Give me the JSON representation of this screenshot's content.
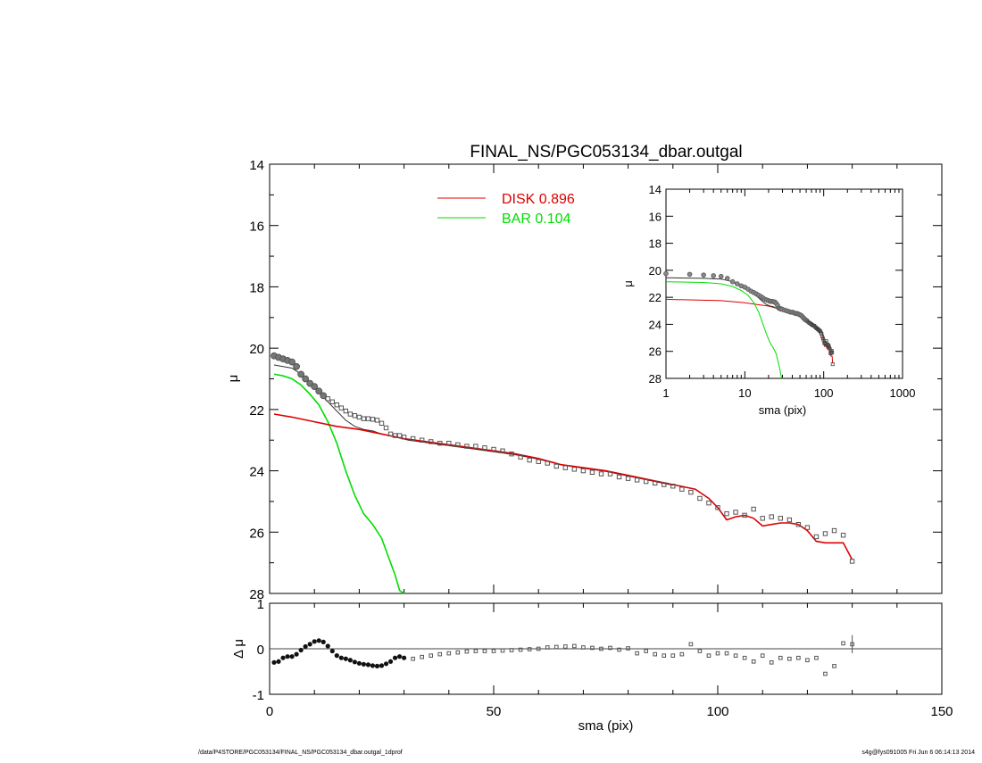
{
  "title": "FINAL_NS/PGC053134_dbar.outgal",
  "footer": {
    "path": "/data/P4STORE/PGC053134/FINAL_NS/PGC053134_dbar.outgal_1dprof",
    "stamp": "s4g@fys091005  Fri Jun  6 06:14:13 2014"
  },
  "colors": {
    "disk": "#dd0000",
    "bar": "#00dd00",
    "data": "#555555",
    "total": "#333333"
  },
  "chart_data": [
    {
      "id": "main",
      "type": "scatter",
      "title": "FINAL_NS/PGC053134_dbar.outgal",
      "xlabel": "",
      "ylabel": "μ",
      "xlim": [
        0,
        150
      ],
      "ylim": [
        28,
        14
      ],
      "xticks": [],
      "yticks": [
        14,
        16,
        18,
        20,
        22,
        24,
        26,
        28
      ],
      "legend": [
        {
          "name": "DISK",
          "value": "0.896",
          "color": "#dd0000"
        },
        {
          "name": "BAR",
          "value": "0.104",
          "color": "#00dd00"
        }
      ],
      "legend_position": "top-center",
      "observed_points": {
        "x": [
          1,
          2,
          3,
          4,
          5,
          6,
          7,
          8,
          9,
          10,
          11,
          12,
          13,
          14,
          15,
          16,
          17,
          18,
          19,
          20,
          21,
          22,
          23,
          24,
          25,
          26,
          27,
          28,
          29,
          30,
          32,
          34,
          36,
          38,
          40,
          42,
          44,
          46,
          48,
          50,
          52,
          54,
          56,
          58,
          60,
          62,
          64,
          66,
          68,
          70,
          72,
          74,
          76,
          78,
          80,
          82,
          84,
          86,
          88,
          90,
          92,
          94,
          96,
          98,
          100,
          102,
          104,
          106,
          108,
          110,
          112,
          114,
          116,
          118,
          120,
          122,
          124,
          126,
          128,
          130
        ],
        "y": [
          20.25,
          20.3,
          20.35,
          20.4,
          20.45,
          20.6,
          20.85,
          21.0,
          21.15,
          21.25,
          21.4,
          21.55,
          21.65,
          21.75,
          21.85,
          21.95,
          22.05,
          22.15,
          22.2,
          22.25,
          22.3,
          22.3,
          22.32,
          22.35,
          22.45,
          22.6,
          22.8,
          22.85,
          22.85,
          22.9,
          22.95,
          23.0,
          23.05,
          23.1,
          23.1,
          23.15,
          23.2,
          23.2,
          23.25,
          23.3,
          23.35,
          23.45,
          23.55,
          23.65,
          23.7,
          23.75,
          23.85,
          23.9,
          23.95,
          24.0,
          24.05,
          24.1,
          24.1,
          24.2,
          24.25,
          24.3,
          24.35,
          24.4,
          24.45,
          24.5,
          24.6,
          24.7,
          24.9,
          25.05,
          25.2,
          25.4,
          25.35,
          25.45,
          25.25,
          25.55,
          25.5,
          25.55,
          25.6,
          25.75,
          25.85,
          26.15,
          26.05,
          25.95,
          26.1,
          26.95
        ]
      },
      "series": [
        {
          "name": "DISK",
          "color": "#dd0000",
          "x": [
            1,
            5,
            10,
            15,
            20,
            25,
            30,
            35,
            40,
            45,
            50,
            55,
            60,
            65,
            70,
            75,
            80,
            85,
            90,
            95,
            98,
            100,
            102,
            104,
            106,
            108,
            110,
            112,
            114,
            116,
            118,
            120,
            122,
            124,
            126,
            128,
            130
          ],
          "y": [
            22.15,
            22.25,
            22.4,
            22.55,
            22.65,
            22.8,
            22.95,
            23.05,
            23.15,
            23.25,
            23.35,
            23.45,
            23.6,
            23.8,
            23.9,
            24.0,
            24.15,
            24.3,
            24.45,
            24.6,
            24.9,
            25.2,
            25.6,
            25.5,
            25.45,
            25.55,
            25.8,
            25.75,
            25.7,
            25.7,
            25.75,
            25.95,
            26.3,
            26.35,
            26.35,
            26.35,
            26.9
          ]
        },
        {
          "name": "BAR",
          "color": "#00dd00",
          "x": [
            1,
            3,
            5,
            7,
            9,
            11,
            13,
            15,
            17,
            19,
            21,
            23,
            25,
            26,
            27,
            28,
            29,
            30
          ],
          "y": [
            20.85,
            20.9,
            21.0,
            21.2,
            21.5,
            21.85,
            22.4,
            23.1,
            24.0,
            24.8,
            25.4,
            25.75,
            26.2,
            26.6,
            27.0,
            27.4,
            27.9,
            28.05
          ]
        },
        {
          "name": "total",
          "color": "#333333",
          "x": [
            1,
            3,
            5,
            7,
            9,
            11,
            13,
            15,
            17,
            19,
            21,
            23,
            25,
            28,
            31,
            35,
            40,
            45,
            50,
            55,
            60,
            65,
            70,
            75,
            80,
            85,
            90
          ],
          "y": [
            20.55,
            20.6,
            20.65,
            20.85,
            21.15,
            21.45,
            21.75,
            22.05,
            22.35,
            22.55,
            22.65,
            22.7,
            22.8,
            22.9,
            23.0,
            23.08,
            23.18,
            23.28,
            23.38,
            23.48,
            23.62,
            23.8,
            23.92,
            24.02,
            24.17,
            24.32,
            24.47
          ]
        }
      ]
    },
    {
      "id": "residual",
      "type": "scatter",
      "xlabel": "sma (pix)",
      "ylabel": "Δ μ",
      "xlim": [
        0,
        150
      ],
      "ylim": [
        -1,
        1
      ],
      "xticks": [
        0,
        50,
        100,
        150
      ],
      "yticks": [
        1,
        0,
        -1
      ],
      "x": [
        1,
        2,
        3,
        4,
        5,
        6,
        7,
        8,
        9,
        10,
        11,
        12,
        13,
        14,
        15,
        16,
        17,
        18,
        19,
        20,
        21,
        22,
        23,
        24,
        25,
        26,
        27,
        28,
        29,
        30,
        32,
        34,
        36,
        38,
        40,
        42,
        44,
        46,
        48,
        50,
        52,
        54,
        56,
        58,
        60,
        62,
        64,
        66,
        68,
        70,
        72,
        74,
        76,
        78,
        80,
        82,
        84,
        86,
        88,
        90,
        92,
        94,
        96,
        98,
        100,
        102,
        104,
        106,
        108,
        110,
        112,
        114,
        116,
        118,
        120,
        122,
        124,
        126,
        128,
        130
      ],
      "values": [
        -0.3,
        -0.28,
        -0.2,
        -0.17,
        -0.17,
        -0.12,
        -0.03,
        0.05,
        0.1,
        0.16,
        0.18,
        0.15,
        0.06,
        -0.05,
        -0.15,
        -0.2,
        -0.22,
        -0.25,
        -0.29,
        -0.32,
        -0.34,
        -0.35,
        -0.37,
        -0.38,
        -0.37,
        -0.33,
        -0.28,
        -0.2,
        -0.17,
        -0.2,
        -0.22,
        -0.18,
        -0.15,
        -0.12,
        -0.1,
        -0.08,
        -0.06,
        -0.05,
        -0.05,
        -0.05,
        -0.04,
        -0.03,
        -0.02,
        -0.01,
        0.0,
        0.03,
        0.04,
        0.05,
        0.06,
        0.03,
        0.02,
        0.0,
        0.02,
        -0.02,
        0.01,
        -0.1,
        -0.05,
        -0.12,
        -0.15,
        -0.15,
        -0.12,
        0.1,
        -0.05,
        -0.15,
        -0.1,
        -0.1,
        -0.15,
        -0.2,
        -0.28,
        -0.15,
        -0.3,
        -0.2,
        -0.22,
        -0.2,
        -0.25,
        -0.2,
        -0.55,
        -0.38,
        0.12,
        0.1
      ],
      "error_bar_x": 130
    },
    {
      "id": "inset",
      "type": "scatter",
      "xlabel": "sma (pix)",
      "ylabel": "μ",
      "xscale": "log",
      "xlim": [
        1,
        1000
      ],
      "ylim": [
        28,
        14
      ],
      "xticks": [
        1,
        10,
        100,
        1000
      ],
      "yticks": [
        14,
        16,
        18,
        20,
        22,
        24,
        26,
        28
      ]
    }
  ]
}
